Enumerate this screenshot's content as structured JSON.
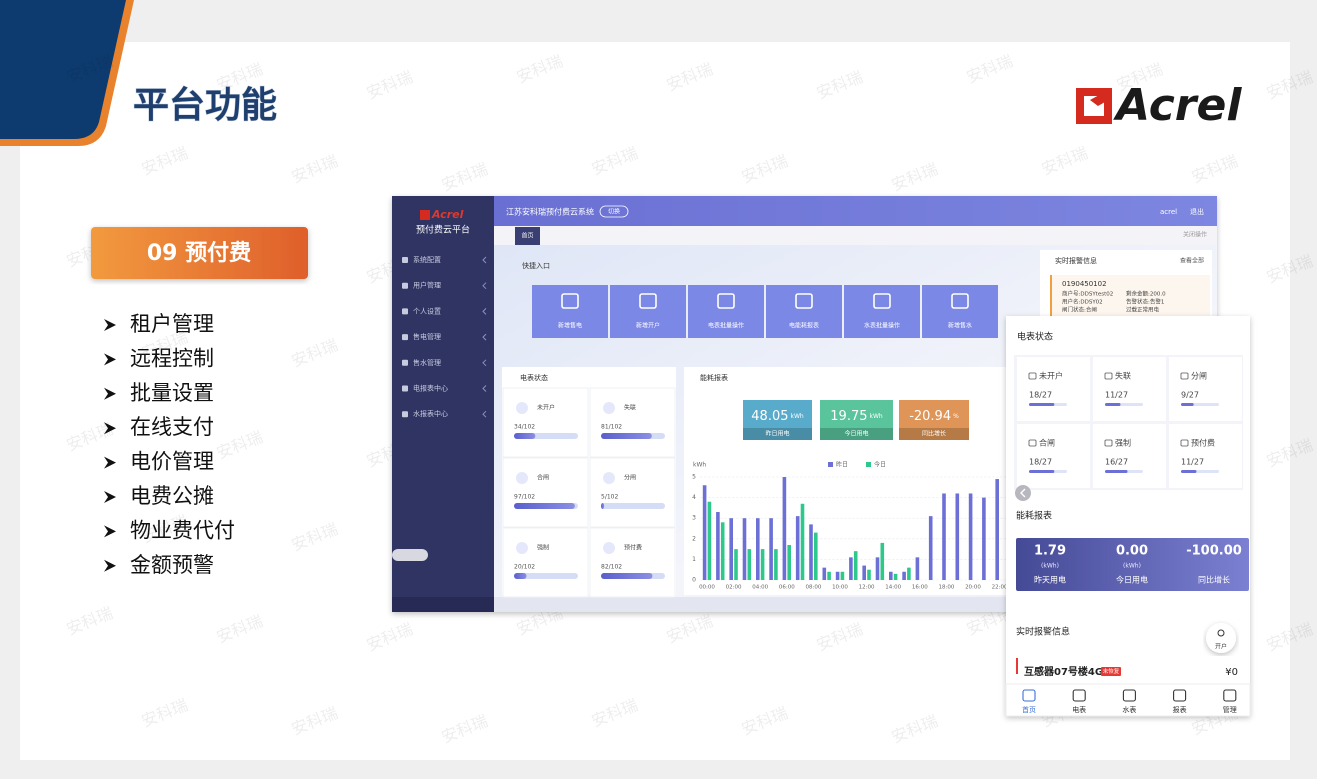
{
  "watermark": "安科瑞",
  "slide": {
    "title": "平台功能",
    "logo": "Acrel",
    "badge": "09 预付费",
    "features": [
      "租户管理",
      "远程控制",
      "批量设置",
      "在线支付",
      "电价管理",
      "电费公摊",
      "物业费代付",
      "金额预警"
    ]
  },
  "desktop": {
    "brand": "Acrel",
    "platform": "预付费云平台",
    "system": "江苏安科瑞预付费云系统",
    "switch": "切换",
    "user": "acrel",
    "logout": "退出",
    "tab": "首页",
    "close_ops": "关闭操作",
    "menu": [
      "系统配置",
      "用户管理",
      "个人设置",
      "售电管理",
      "售水管理",
      "电报表中心",
      "水报表中心"
    ],
    "quick_title": "快捷入口",
    "quick": [
      "新增售电",
      "新增开户",
      "电表批量操作",
      "电能耗报表",
      "水表批量操作",
      "新增售水"
    ],
    "alarm": {
      "title": "实时报警信息",
      "more": "查看全部",
      "id": "0190450102",
      "lines": [
        "商户号:DDSYtest02",
        "剩余金额:200.0",
        "用户名:DDSY02",
        "告警状态:告警1",
        "闸门状态:合闸",
        "过载正常用电"
      ]
    },
    "meter_status": {
      "title": "电表状态",
      "items": [
        {
          "label": "未开户",
          "value": "34/102"
        },
        {
          "label": "失联",
          "value": "81/102"
        },
        {
          "label": "合闸",
          "value": "97/102"
        },
        {
          "label": "分闸",
          "value": "5/102"
        },
        {
          "label": "强制",
          "value": "20/102"
        },
        {
          "label": "预付费",
          "value": "82/102"
        }
      ]
    },
    "energy": {
      "title": "能耗报表",
      "cards": [
        {
          "value": "48.05",
          "unit": "kWh",
          "label": "昨日用电",
          "color": "#3b9cc2"
        },
        {
          "value": "19.75",
          "unit": "kWh",
          "label": "今日用电",
          "color": "#3dba8c"
        },
        {
          "value": "-20.94",
          "unit": "%",
          "label": "同比增长",
          "color": "#d98239"
        }
      ]
    }
  },
  "chart_data": {
    "type": "bar",
    "ylabel": "kWh",
    "categories": [
      "00:00",
      null,
      "02:00",
      null,
      "04:00",
      null,
      "06:00",
      null,
      "08:00",
      null,
      "10:00",
      null,
      "12:00",
      null,
      "14:00",
      null,
      "16:00",
      null,
      "18:00",
      null,
      "20:00",
      null,
      "22:00"
    ],
    "series": [
      {
        "name": "昨日",
        "color": "#6b6fd6",
        "values": [
          4.6,
          3.3,
          3.0,
          3.0,
          3.0,
          3.0,
          5.0,
          3.1,
          2.7,
          0.6,
          0.4,
          1.1,
          0.7,
          1.1,
          0.4,
          0.4,
          1.1,
          3.1,
          4.2,
          4.2,
          4.2,
          4.0,
          4.9
        ]
      },
      {
        "name": "今日",
        "color": "#2ec98a",
        "values": [
          3.8,
          2.8,
          1.5,
          1.5,
          1.5,
          1.5,
          1.7,
          3.7,
          2.3,
          0.4,
          0.4,
          1.4,
          0.5,
          1.8,
          0.3,
          0.6,
          null,
          null,
          null,
          null,
          null,
          null,
          null
        ]
      }
    ],
    "ylim": [
      0,
      5
    ],
    "yticks": [
      0,
      1,
      2,
      3,
      4,
      5
    ],
    "grid": true
  },
  "mobile": {
    "meter_title": "电表状态",
    "meters": [
      {
        "label": "未开户",
        "value": "18/27"
      },
      {
        "label": "失联",
        "value": "11/27"
      },
      {
        "label": "分闸",
        "value": "9/27"
      },
      {
        "label": "合闸",
        "value": "18/27"
      },
      {
        "label": "强制",
        "value": "16/27"
      },
      {
        "label": "预付费",
        "value": "11/27"
      }
    ],
    "energy_title": "能耗报表",
    "energy": [
      {
        "value": "1.79",
        "unit": "(kWh)",
        "label": "昨天用电"
      },
      {
        "value": "0.00",
        "unit": "(kWh)",
        "label": "今日用电"
      },
      {
        "value": "-100.00",
        "label": "同比增长"
      }
    ],
    "alarm_title": "实时报警信息",
    "open_button": "开户",
    "alarm_item": {
      "name": "互感器07号楼4G",
      "tag": "未恢复",
      "amount": "¥0"
    },
    "nav": [
      "首页",
      "电表",
      "水表",
      "报表",
      "管理"
    ]
  }
}
